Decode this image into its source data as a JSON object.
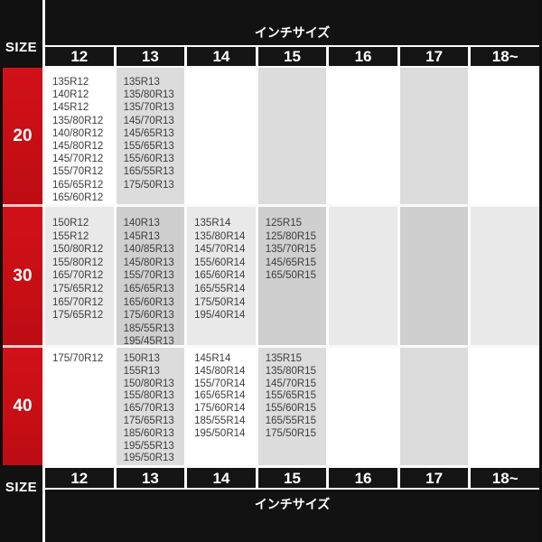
{
  "table": {
    "size_label": "SIZE",
    "inch_size_label": "インチサイズ",
    "columns": [
      "12",
      "13",
      "14",
      "15",
      "16",
      "17",
      "18~"
    ],
    "rows": [
      {
        "label": "20",
        "cells": [
          [
            "135R12",
            "140R12",
            "145R12",
            "135/80R12",
            "140/80R12",
            "145/80R12",
            "145/70R12",
            "155/70R12",
            "165/65R12",
            "165/60R12"
          ],
          [
            "135R13",
            "135/80R13",
            "135/70R13",
            "145/70R13",
            "145/65R13",
            "155/65R13",
            "155/60R13",
            "165/55R13",
            "175/50R13"
          ],
          [],
          [],
          [],
          [],
          []
        ]
      },
      {
        "label": "30",
        "cells": [
          [
            "150R12",
            "155R12",
            "150/80R12",
            "155/80R12",
            "165/70R12",
            "175/65R12",
            "165/70R12",
            "175/65R12"
          ],
          [
            "140R13",
            "145R13",
            "140/85R13",
            "145/80R13",
            "155/70R13",
            "165/65R13",
            "165/60R13",
            "175/60R13",
            "185/55R13",
            "195/45R13"
          ],
          [
            "135R14",
            "135/80R14",
            "145/70R14",
            "155/60R14",
            "165/60R14",
            "165/55R14",
            "175/50R14",
            "195/40R14"
          ],
          [
            "125R15",
            "125/80R15",
            "135/70R15",
            "145/65R15",
            "165/50R15"
          ],
          [],
          [],
          []
        ]
      },
      {
        "label": "40",
        "cells": [
          [
            "175/70R12"
          ],
          [
            "150R13",
            "155R13",
            "150/80R13",
            "155/80R13",
            "165/70R13",
            "175/65R13",
            "185/60R13",
            "195/55R13",
            "195/50R13"
          ],
          [
            "145R14",
            "145/80R14",
            "155/70R14",
            "165/65R14",
            "175/60R14",
            "185/55R14",
            "195/50R14"
          ],
          [
            "135R15",
            "135/80R15",
            "145/70R15",
            "155/65R15",
            "155/60R15",
            "165/55R15",
            "175/50R15"
          ],
          [],
          [],
          []
        ]
      }
    ]
  },
  "colors": {
    "accent_red": "#c80e15",
    "separator_pink": "#f2c9c9",
    "cell_gray": "#dcdcdc",
    "row30_light": "#e9e9e9",
    "row30_gray": "#cfcfcf",
    "bar_black": "#121212",
    "line_white": "#fafafa"
  },
  "chart_data": {
    "type": "table",
    "title": "インチサイズ",
    "row_header": "SIZE",
    "columns": [
      "12",
      "13",
      "14",
      "15",
      "16",
      "17",
      "18~"
    ],
    "row_labels": [
      "20",
      "30",
      "40"
    ],
    "matrix": [
      [
        [
          "135R12",
          "140R12",
          "145R12",
          "135/80R12",
          "140/80R12",
          "145/80R12",
          "145/70R12",
          "155/70R12",
          "165/65R12",
          "165/60R12"
        ],
        [
          "135R13",
          "135/80R13",
          "135/70R13",
          "145/70R13",
          "145/65R13",
          "155/65R13",
          "155/60R13",
          "165/55R13",
          "175/50R13"
        ],
        [],
        [],
        [],
        [],
        []
      ],
      [
        [
          "150R12",
          "155R12",
          "150/80R12",
          "155/80R12",
          "165/70R12",
          "175/65R12",
          "165/70R12",
          "175/65R12"
        ],
        [
          "140R13",
          "145R13",
          "140/85R13",
          "145/80R13",
          "155/70R13",
          "165/65R13",
          "165/60R13",
          "175/60R13",
          "185/55R13",
          "195/45R13"
        ],
        [
          "135R14",
          "135/80R14",
          "145/70R14",
          "155/60R14",
          "165/60R14",
          "165/55R14",
          "175/50R14",
          "195/40R14"
        ],
        [
          "125R15",
          "125/80R15",
          "135/70R15",
          "145/65R15",
          "165/50R15"
        ],
        [],
        [],
        []
      ],
      [
        [
          "175/70R12"
        ],
        [
          "150R13",
          "155R13",
          "150/80R13",
          "155/80R13",
          "165/70R13",
          "175/65R13",
          "185/60R13",
          "195/55R13",
          "195/50R13"
        ],
        [
          "145R14",
          "145/80R14",
          "155/70R14",
          "165/65R14",
          "175/60R14",
          "185/55R14",
          "195/50R14"
        ],
        [
          "135R15",
          "135/80R15",
          "145/70R15",
          "155/65R15",
          "155/60R15",
          "165/55R15",
          "175/50R15"
        ],
        [],
        [],
        []
      ]
    ]
  }
}
